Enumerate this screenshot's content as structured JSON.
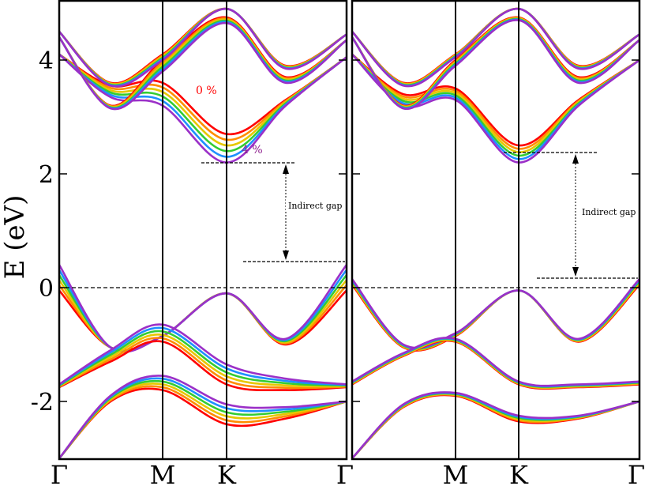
{
  "chart_data": [
    {
      "type": "line",
      "title": "",
      "xlabel": "",
      "ylabel": "E (eV)",
      "ylim": [
        -3,
        5
      ],
      "yticks": [
        -2,
        0,
        2,
        4
      ],
      "ytick_labels": [
        "-2",
        "0",
        "2",
        "4"
      ],
      "x_kpoints": [
        "Γ",
        "M",
        "K",
        "Γ"
      ],
      "x_positions": [
        0,
        1,
        1.577,
        2.732
      ],
      "fermi_level": 0,
      "series_names": [
        "0 %",
        "",
        "",
        "",
        "",
        "4 %"
      ],
      "series_colors": [
        "#ff0000",
        "#ff8c00",
        "#e6c800",
        "#33cc33",
        "#1e90ff",
        "#9b30c8"
      ],
      "annotations": [
        {
          "text": "0 %",
          "color": "#ff0000"
        },
        {
          "text": "4 %",
          "color": "#8b1a8b"
        },
        {
          "text": "Indirect gap",
          "color": "#000000"
        }
      ],
      "indirect_gap": {
        "vbm": 0.42,
        "cbm": 2.18
      },
      "bands": {
        "valence": [
          {
            "y": [
              -0.05,
              -1.05,
              -0.85,
              -0.1,
              -1.0,
              -0.05
            ],
            "shift": [
              0.45,
              0.0,
              0.0,
              0.0,
              0.1,
              0.45
            ]
          },
          {
            "y": [
              -1.75,
              -1.3,
              -0.95,
              -1.7,
              -1.8,
              -1.75
            ],
            "shift": [
              0.05,
              0.2,
              0.3,
              0.35,
              0.2,
              0.05
            ]
          },
          {
            "y": [
              -3.0,
              -2.0,
              -1.8,
              -2.4,
              -2.3,
              -2.0
            ],
            "shift": [
              0.0,
              0.1,
              0.25,
              0.35,
              0.2,
              0.0
            ]
          }
        ],
        "conduction": [
          {
            "y": [
              4.1,
              3.55,
              3.6,
              2.7,
              3.3,
              4.05
            ],
            "shift": [
              0.0,
              0.2,
              0.4,
              0.5,
              0.1,
              0.0
            ]
          },
          {
            "y": [
              4.4,
              3.2,
              4.0,
              4.75,
              3.7,
              4.35
            ],
            "shift": [
              0.0,
              0.05,
              0.2,
              0.1,
              0.1,
              0.0
            ]
          },
          {
            "y": [
              4.5,
              3.6,
              4.1,
              4.9,
              3.9,
              4.45
            ],
            "shift": [
              0.0,
              0.05,
              0.1,
              0.0,
              0.05,
              0.0
            ]
          }
        ]
      }
    },
    {
      "type": "line",
      "title": "",
      "xlabel": "",
      "ylabel": "",
      "ylim": [
        -3,
        5
      ],
      "x_kpoints": [
        "M",
        "K",
        "Γ"
      ],
      "x_positions": [
        0,
        1,
        1.577,
        2.732
      ],
      "fermi_level": 0,
      "series_colors": [
        "#ff0000",
        "#ff8c00",
        "#e6c800",
        "#33cc33",
        "#1e90ff",
        "#9b30c8"
      ],
      "annotations": [
        {
          "text": "Indirect gap",
          "color": "#000000"
        }
      ],
      "indirect_gap": {
        "vbm": 0.13,
        "cbm": 2.35
      },
      "bands": {
        "valence": [
          {
            "y": [
              0.05,
              -1.05,
              -0.85,
              -0.05,
              -0.95,
              0.05
            ],
            "shift": [
              0.1,
              0.05,
              0.05,
              0.0,
              0.05,
              0.1
            ]
          },
          {
            "y": [
              -1.7,
              -1.2,
              -0.95,
              -1.7,
              -1.75,
              -1.7
            ],
            "shift": [
              0.05,
              0.05,
              0.05,
              0.05,
              0.05,
              0.05
            ]
          },
          {
            "y": [
              -3.0,
              -2.1,
              -1.9,
              -2.35,
              -2.3,
              -2.0
            ],
            "shift": [
              0.0,
              0.05,
              0.05,
              0.1,
              0.05,
              0.0
            ]
          }
        ],
        "conduction": [
          {
            "y": [
              4.1,
              3.4,
              3.5,
              2.5,
              3.3,
              4.0
            ],
            "shift": [
              0.0,
              0.2,
              0.2,
              0.3,
              0.1,
              0.0
            ]
          },
          {
            "y": [
              4.4,
              3.2,
              4.0,
              4.75,
              3.7,
              4.35
            ],
            "shift": [
              0.0,
              0.05,
              0.1,
              0.05,
              0.1,
              0.0
            ]
          },
          {
            "y": [
              4.5,
              3.6,
              4.1,
              4.9,
              3.9,
              4.45
            ],
            "shift": [
              0.0,
              0.05,
              0.05,
              0.0,
              0.05,
              0.0
            ]
          }
        ]
      }
    }
  ]
}
